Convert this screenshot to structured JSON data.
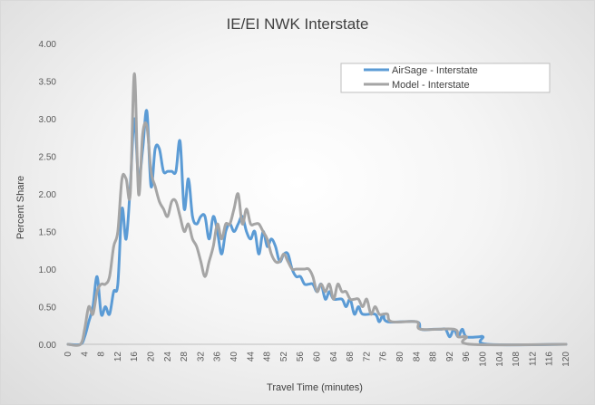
{
  "chart_data": {
    "type": "line",
    "title": "IE/EI NWK Interstate",
    "xlabel": "Travel Time (minutes)",
    "ylabel": "Percent Share",
    "xlim": [
      0,
      120
    ],
    "ylim": [
      0,
      4
    ],
    "x_ticks": [
      "0",
      "4",
      "8",
      "12",
      "16",
      "20",
      "24",
      "28",
      "32",
      "36",
      "40",
      "44",
      "48",
      "52",
      "56",
      "60",
      "64",
      "68",
      "72",
      "76",
      "80",
      "84",
      "88",
      "92",
      "96",
      "100",
      "104",
      "108",
      "112",
      "116",
      "120"
    ],
    "y_ticks": [
      "0.00",
      "0.50",
      "1.00",
      "1.50",
      "2.00",
      "2.50",
      "3.00",
      "3.50",
      "4.00"
    ],
    "grid": false,
    "legend_position": "top-right",
    "series": [
      {
        "name": "AirSage - Interstate",
        "color": "#5b9bd5",
        "points": [
          [
            0,
            0
          ],
          [
            3,
            0
          ],
          [
            4,
            0.1
          ],
          [
            5,
            0.3
          ],
          [
            6,
            0.5
          ],
          [
            7,
            0.9
          ],
          [
            8,
            0.4
          ],
          [
            9,
            0.5
          ],
          [
            10,
            0.4
          ],
          [
            11,
            0.7
          ],
          [
            12,
            0.8
          ],
          [
            13,
            1.8
          ],
          [
            14,
            1.4
          ],
          [
            15,
            2.1
          ],
          [
            16,
            3.0
          ],
          [
            17,
            2.2
          ],
          [
            18,
            2.6
          ],
          [
            19,
            3.1
          ],
          [
            20,
            2.1
          ],
          [
            21,
            2.6
          ],
          [
            22,
            2.6
          ],
          [
            23,
            2.3
          ],
          [
            24,
            2.3
          ],
          [
            25,
            2.3
          ],
          [
            26,
            2.3
          ],
          [
            27,
            2.7
          ],
          [
            28,
            1.8
          ],
          [
            29,
            2.2
          ],
          [
            30,
            1.7
          ],
          [
            31,
            1.6
          ],
          [
            32,
            1.7
          ],
          [
            33,
            1.7
          ],
          [
            34,
            1.4
          ],
          [
            35,
            1.7
          ],
          [
            36,
            1.5
          ],
          [
            37,
            1.2
          ],
          [
            38,
            1.5
          ],
          [
            39,
            1.6
          ],
          [
            40,
            1.5
          ],
          [
            41,
            1.6
          ],
          [
            42,
            1.7
          ],
          [
            43,
            1.5
          ],
          [
            44,
            1.4
          ],
          [
            45,
            1.5
          ],
          [
            46,
            1.2
          ],
          [
            47,
            1.5
          ],
          [
            48,
            1.3
          ],
          [
            49,
            1.4
          ],
          [
            50,
            1.3
          ],
          [
            51,
            1.1
          ],
          [
            52,
            1.2
          ],
          [
            53,
            1.2
          ],
          [
            54,
            1.0
          ],
          [
            55,
            0.9
          ],
          [
            56,
            0.9
          ],
          [
            57,
            0.8
          ],
          [
            58,
            0.8
          ],
          [
            59,
            0.8
          ],
          [
            60,
            0.7
          ],
          [
            61,
            0.8
          ],
          [
            62,
            0.6
          ],
          [
            63,
            0.7
          ],
          [
            64,
            0.6
          ],
          [
            66,
            0.6
          ],
          [
            67,
            0.5
          ],
          [
            68,
            0.6
          ],
          [
            69,
            0.4
          ],
          [
            70,
            0.5
          ],
          [
            71,
            0.4
          ],
          [
            74,
            0.4
          ],
          [
            75,
            0.3
          ],
          [
            76,
            0.4
          ],
          [
            77,
            0.3
          ],
          [
            84,
            0.3
          ],
          [
            85,
            0.2
          ],
          [
            88,
            0.2
          ],
          [
            89,
            0.2
          ],
          [
            90,
            0.2
          ],
          [
            91,
            0.2
          ],
          [
            92,
            0.1
          ],
          [
            93,
            0.2
          ],
          [
            94,
            0.1
          ],
          [
            95,
            0.2
          ],
          [
            96,
            0.1
          ],
          [
            99,
            0.1
          ],
          [
            100,
            0.1
          ],
          [
            101,
            0.0
          ],
          [
            120,
            0.0
          ]
        ]
      },
      {
        "name": "Model - Interstate",
        "color": "#a5a5a5",
        "points": [
          [
            0,
            0
          ],
          [
            3,
            0
          ],
          [
            4,
            0.2
          ],
          [
            5,
            0.5
          ],
          [
            6,
            0.4
          ],
          [
            7,
            0.7
          ],
          [
            8,
            0.8
          ],
          [
            9,
            0.8
          ],
          [
            10,
            0.9
          ],
          [
            11,
            1.3
          ],
          [
            12,
            1.5
          ],
          [
            13,
            2.2
          ],
          [
            14,
            2.2
          ],
          [
            15,
            2.0
          ],
          [
            16,
            3.6
          ],
          [
            17,
            2.0
          ],
          [
            18,
            2.8
          ],
          [
            19,
            2.9
          ],
          [
            20,
            2.3
          ],
          [
            21,
            2.1
          ],
          [
            22,
            1.9
          ],
          [
            23,
            1.8
          ],
          [
            24,
            1.7
          ],
          [
            25,
            1.9
          ],
          [
            26,
            1.9
          ],
          [
            27,
            1.7
          ],
          [
            28,
            1.5
          ],
          [
            29,
            1.6
          ],
          [
            30,
            1.4
          ],
          [
            31,
            1.3
          ],
          [
            32,
            1.1
          ],
          [
            33,
            0.9
          ],
          [
            34,
            1.1
          ],
          [
            35,
            1.3
          ],
          [
            36,
            1.6
          ],
          [
            37,
            1.4
          ],
          [
            38,
            1.6
          ],
          [
            39,
            1.6
          ],
          [
            40,
            1.8
          ],
          [
            41,
            2.0
          ],
          [
            42,
            1.6
          ],
          [
            43,
            1.8
          ],
          [
            44,
            1.6
          ],
          [
            45,
            1.6
          ],
          [
            46,
            1.6
          ],
          [
            47,
            1.5
          ],
          [
            48,
            1.4
          ],
          [
            49,
            1.2
          ],
          [
            50,
            1.1
          ],
          [
            51,
            1.1
          ],
          [
            52,
            1.2
          ],
          [
            53,
            1.1
          ],
          [
            54,
            1.0
          ],
          [
            55,
            1.0
          ],
          [
            56,
            1.0
          ],
          [
            57,
            1.0
          ],
          [
            58,
            1.0
          ],
          [
            59,
            0.9
          ],
          [
            60,
            0.7
          ],
          [
            61,
            0.8
          ],
          [
            62,
            0.7
          ],
          [
            63,
            0.8
          ],
          [
            64,
            0.6
          ],
          [
            65,
            0.8
          ],
          [
            66,
            0.7
          ],
          [
            67,
            0.7
          ],
          [
            68,
            0.6
          ],
          [
            69,
            0.6
          ],
          [
            70,
            0.6
          ],
          [
            71,
            0.5
          ],
          [
            72,
            0.6
          ],
          [
            73,
            0.4
          ],
          [
            74,
            0.5
          ],
          [
            75,
            0.4
          ],
          [
            76,
            0.4
          ],
          [
            77,
            0.4
          ],
          [
            78,
            0.3
          ],
          [
            84,
            0.3
          ],
          [
            85,
            0.2
          ],
          [
            93,
            0.2
          ],
          [
            94,
            0.1
          ],
          [
            96,
            0.1
          ],
          [
            97,
            0.0
          ],
          [
            120,
            0.0
          ]
        ]
      }
    ]
  }
}
